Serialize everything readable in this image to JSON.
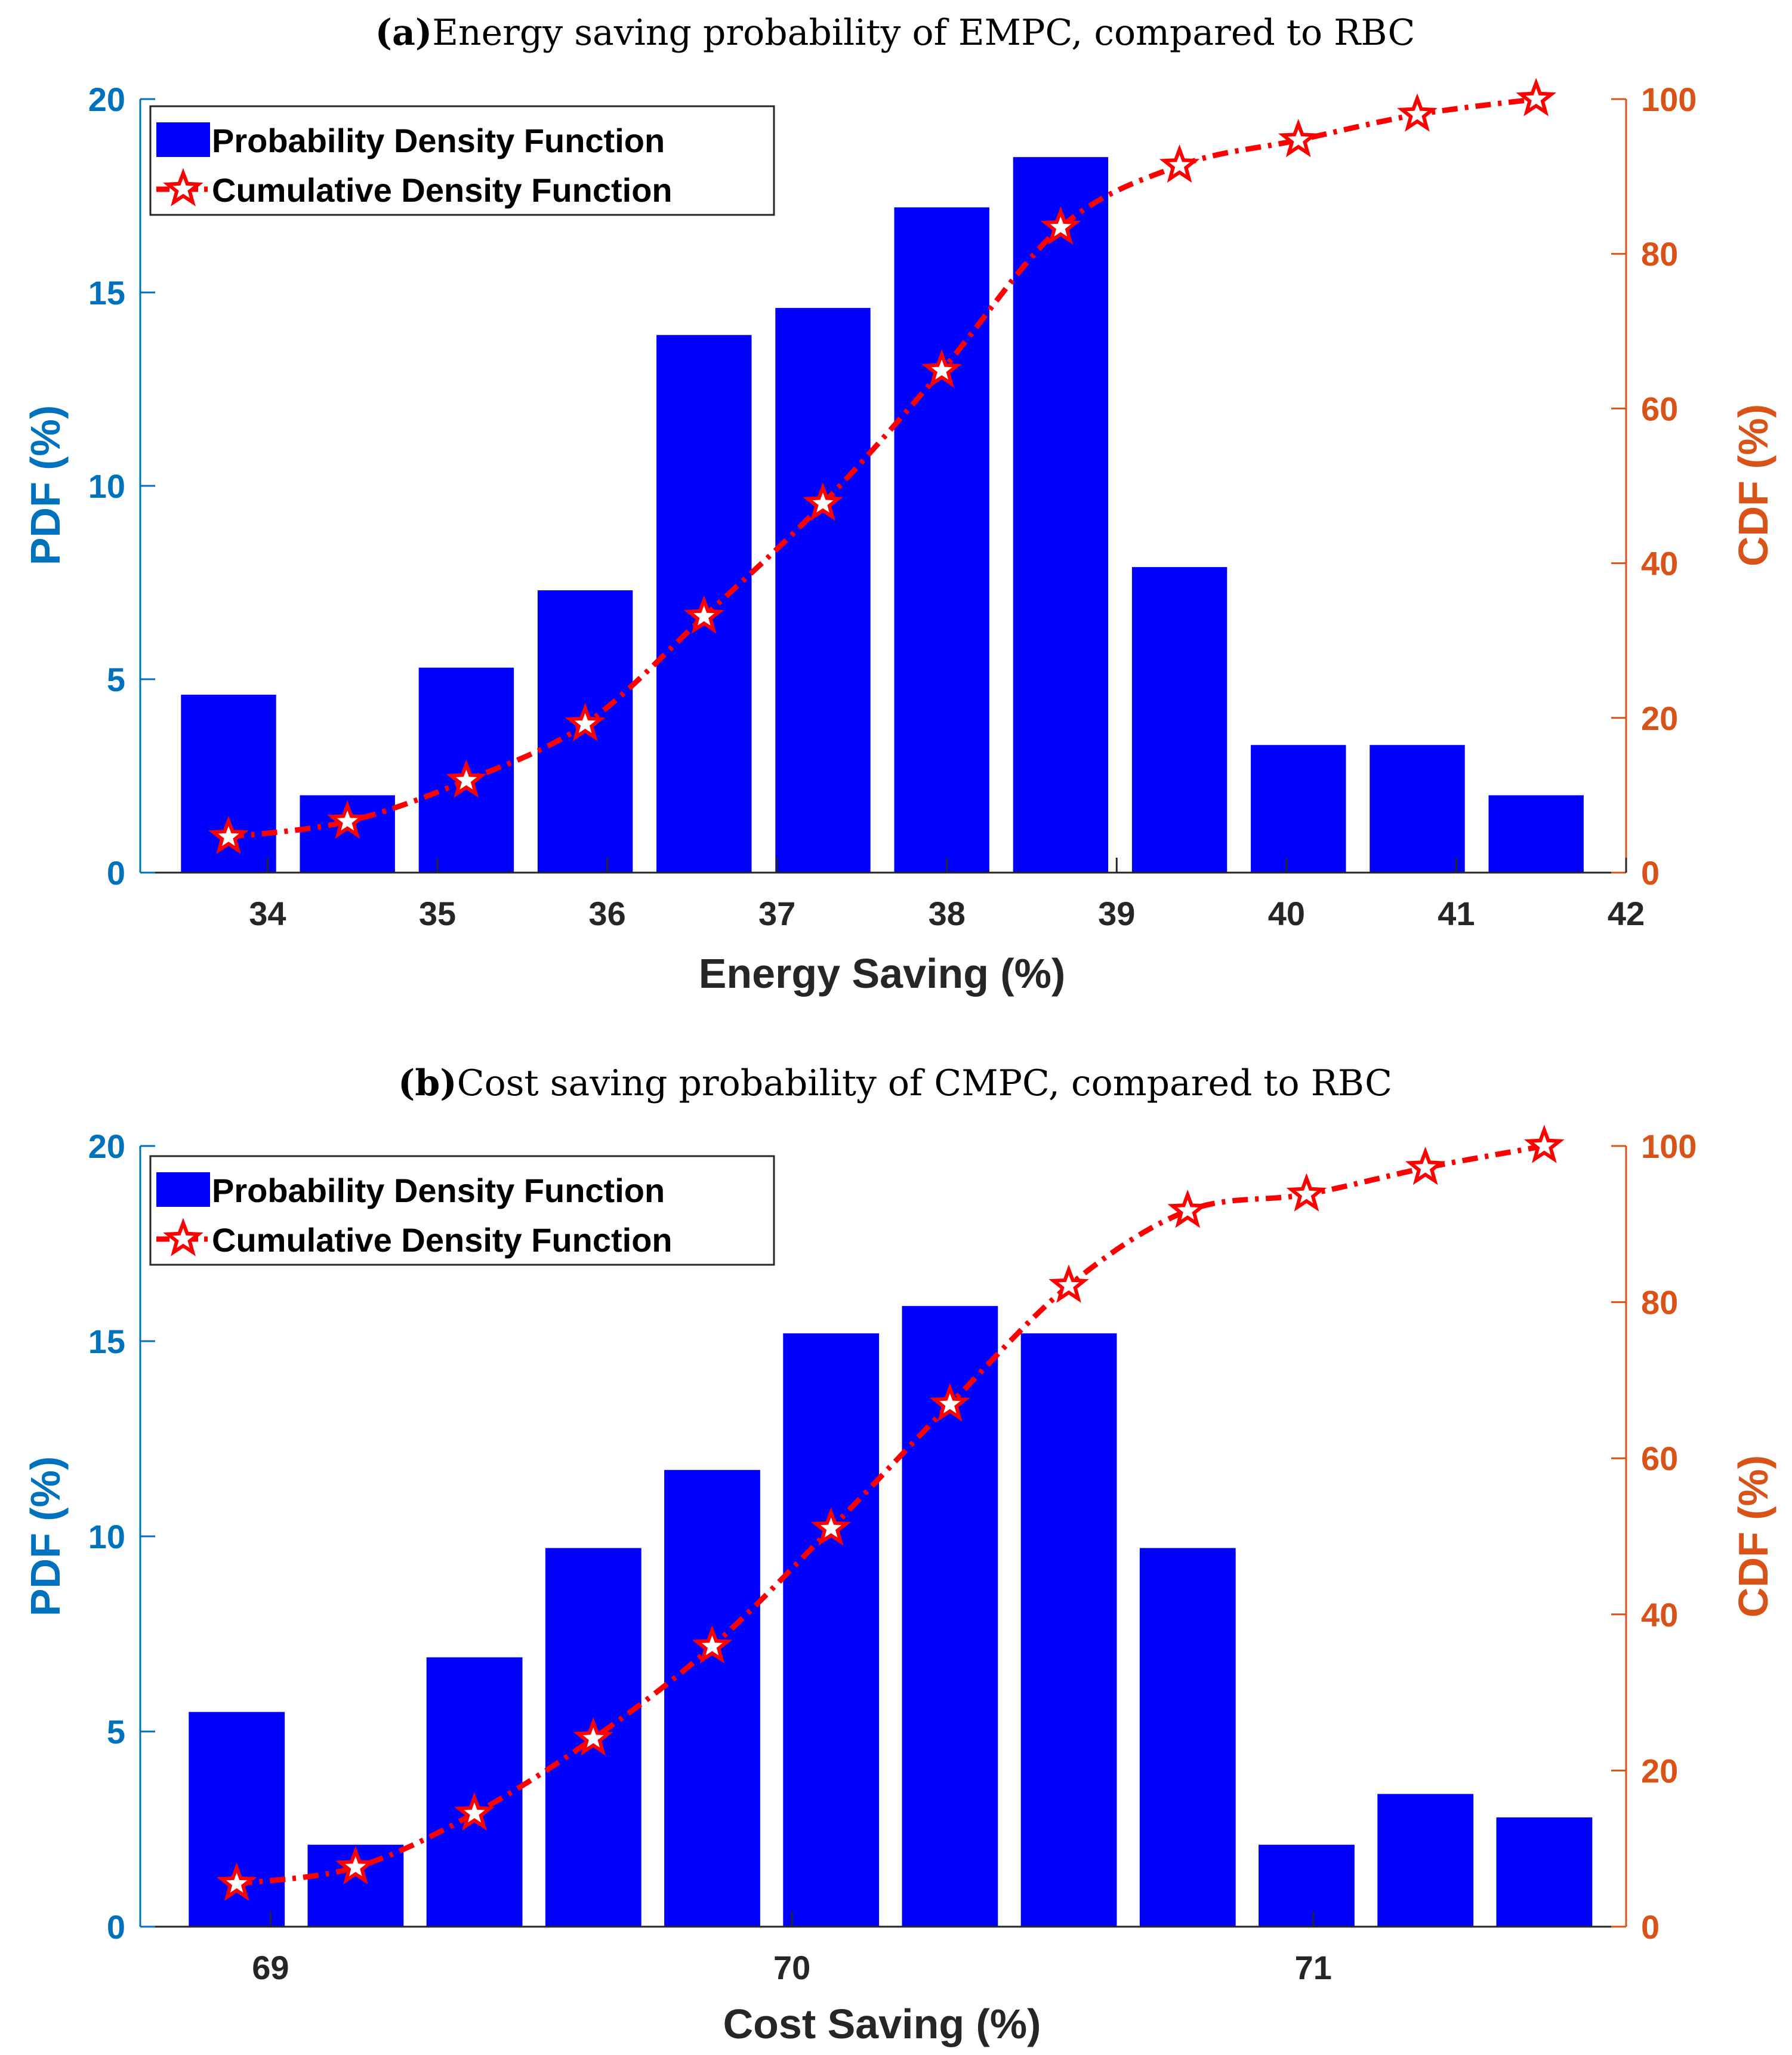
{
  "colors": {
    "bar": "#0000ff",
    "cdf": "#ff0000",
    "left_axis": "#0072bd",
    "right_axis": "#d95319",
    "axis_x": "#262626"
  },
  "legend": {
    "pdf_label": "Probability Density Function",
    "cdf_label": "Cumulative Density Function"
  },
  "chart_data": [
    {
      "type": "bar",
      "panel_letter": "(a)",
      "title": "Energy saving probability of EMPC, compared to RBC",
      "xlabel": "Energy Saving (%)",
      "ylabel": "PDF (%)",
      "y2label": "CDF (%)",
      "xlim": [
        33.25,
        42
      ],
      "ylim": [
        0,
        20
      ],
      "y2lim": [
        0,
        100
      ],
      "xticks": [
        34,
        35,
        36,
        37,
        38,
        39,
        40,
        41,
        42
      ],
      "yticks": [
        0,
        5,
        10,
        15,
        20
      ],
      "y2ticks": [
        0,
        20,
        40,
        60,
        80,
        100
      ],
      "bar_width": 0.56,
      "x": [
        33.77,
        34.47,
        35.17,
        35.87,
        36.57,
        37.27,
        37.97,
        38.67,
        39.37,
        40.07,
        40.77,
        41.47
      ],
      "series": [
        {
          "name": "Probability Density Function",
          "axis": "left",
          "values": [
            4.6,
            2.0,
            5.3,
            7.3,
            13.9,
            14.6,
            17.2,
            18.5,
            7.9,
            3.3,
            3.3,
            2.0
          ]
        },
        {
          "name": "Cumulative Density Function",
          "axis": "right",
          "values": [
            4.6,
            6.6,
            11.9,
            19.2,
            33.1,
            47.7,
            64.9,
            83.4,
            91.4,
            94.7,
            98.0,
            100.0
          ]
        }
      ],
      "legend_position": "top-left"
    },
    {
      "type": "bar",
      "panel_letter": "(b)",
      "title": "Cost saving probability of CMPC, compared to RBC",
      "xlabel": "Cost Saving (%)",
      "ylabel": "PDF (%)",
      "y2label": "CDF (%)",
      "xlim": [
        68.75,
        71.6
      ],
      "ylim": [
        0,
        20
      ],
      "y2lim": [
        0,
        100
      ],
      "xticks": [
        69,
        70,
        71
      ],
      "yticks": [
        0,
        5,
        10,
        15,
        20
      ],
      "y2ticks": [
        0,
        20,
        40,
        60,
        80,
        100
      ],
      "bar_width": 0.184,
      "x": [
        68.935,
        69.163,
        69.391,
        69.619,
        69.847,
        70.075,
        70.303,
        70.531,
        70.759,
        70.987,
        71.215,
        71.443
      ],
      "series": [
        {
          "name": "Probability Density Function",
          "axis": "left",
          "values": [
            5.5,
            2.1,
            6.9,
            9.7,
            11.7,
            15.2,
            15.9,
            15.2,
            9.7,
            2.1,
            3.4,
            2.8
          ]
        },
        {
          "name": "Cumulative Density Function",
          "axis": "right",
          "values": [
            5.5,
            7.6,
            14.5,
            24.1,
            35.9,
            51.0,
            66.9,
            82.1,
            91.7,
            93.8,
            97.2,
            100.0
          ]
        }
      ],
      "legend_position": "top-left"
    }
  ]
}
